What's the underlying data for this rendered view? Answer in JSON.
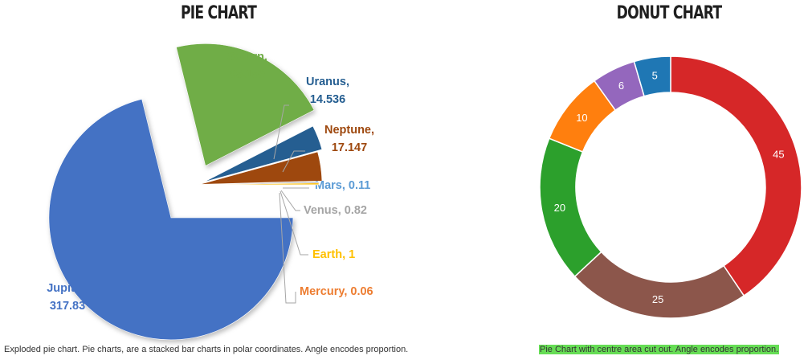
{
  "charts": {
    "pie": {
      "title": "PIE CHART",
      "caption": "Exploded pie chart. Pie charts, are a stacked bar charts in polar coordinates. Angle encodes proportion."
    },
    "donut": {
      "title": "DONUT CHART",
      "caption": "Pie Chart with centre area cut out. Angle encodes proportion.",
      "caption_highlight": "#66dd55"
    }
  },
  "chart_data": [
    {
      "type": "pie",
      "title": "PIE CHART",
      "exploded": true,
      "slices": [
        {
          "name": "Jupiter",
          "value": 317.83,
          "label": "Jupiter,",
          "value_label": "317.83",
          "color": "#4472c4"
        },
        {
          "name": "Saturn",
          "value": 95.159,
          "label": "Saturn,",
          "value_label": "95.159",
          "color": "#70ad47"
        },
        {
          "name": "Uranus",
          "value": 14.536,
          "label": "Uranus,",
          "value_label": "14.536",
          "color": "#255e91"
        },
        {
          "name": "Neptune",
          "value": 17.147,
          "label": "Neptune,",
          "value_label": "17.147",
          "color": "#9e480e"
        },
        {
          "name": "Mars",
          "value": 0.11,
          "label": "Mars, 0.11",
          "color": "#5b9bd5"
        },
        {
          "name": "Venus",
          "value": 0.82,
          "label": "Venus, 0.82",
          "color": "#a5a5a5"
        },
        {
          "name": "Earth",
          "value": 1,
          "label": "Earth, 1",
          "color": "#ffc000"
        },
        {
          "name": "Mercury",
          "value": 0.06,
          "label": "Mercury, 0.06",
          "color": "#ed7d31"
        }
      ]
    },
    {
      "type": "pie",
      "variant": "donut",
      "title": "DONUT CHART",
      "slices": [
        {
          "value": 45,
          "label": "45",
          "color": "#d62728"
        },
        {
          "value": 25,
          "label": "25",
          "color": "#8c564b"
        },
        {
          "value": 20,
          "label": "20",
          "color": "#2ca02c"
        },
        {
          "value": 10,
          "label": "10",
          "color": "#ff7f0e"
        },
        {
          "value": 6,
          "label": "6",
          "color": "#9467bd"
        },
        {
          "value": 5,
          "label": "5",
          "color": "#1f77b4"
        }
      ]
    }
  ]
}
